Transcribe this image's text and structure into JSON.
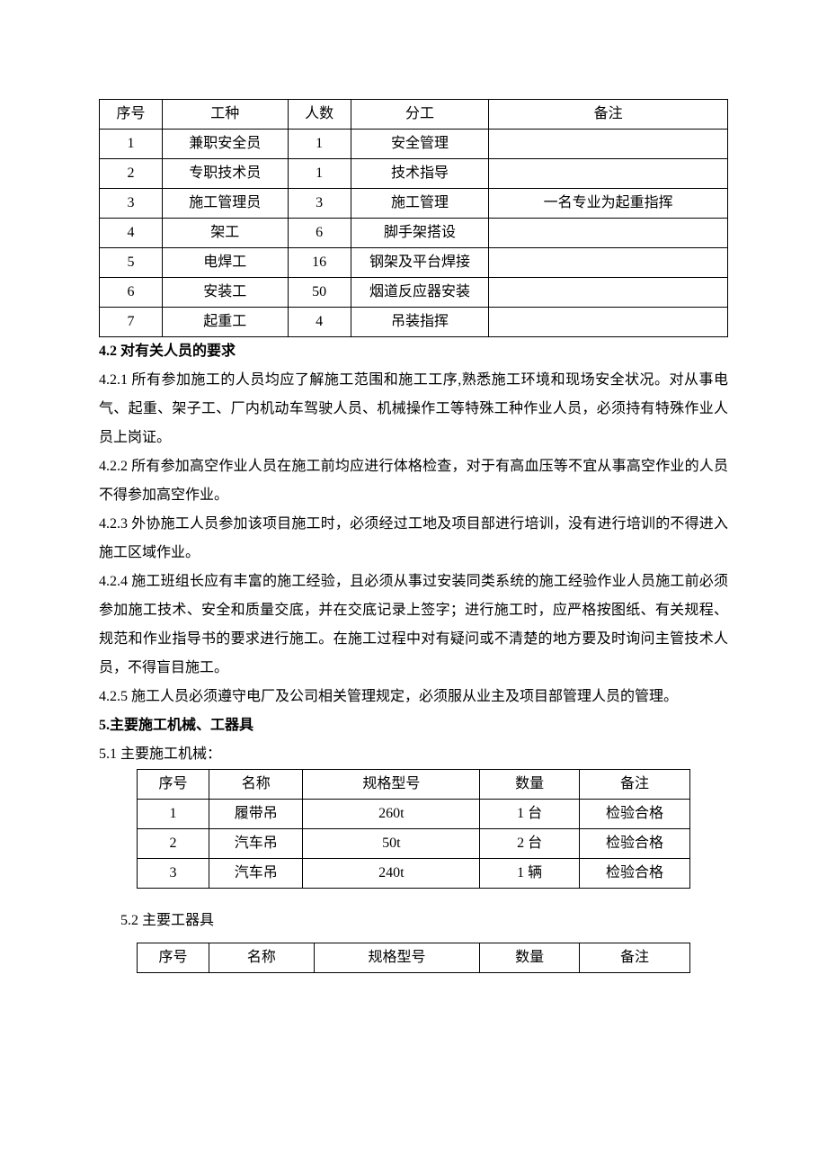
{
  "colors": {
    "text": "#000000",
    "background": "#ffffff",
    "border": "#000000"
  },
  "typography": {
    "body_fontsize_pt": 12,
    "line_height": 2.0,
    "font_family": "SimSun"
  },
  "table1": {
    "type": "table",
    "border_color": "#000000",
    "columns": [
      {
        "key": "no",
        "label": "序号",
        "width_pct": 10
      },
      {
        "key": "job",
        "label": "工种",
        "width_pct": 20
      },
      {
        "key": "count",
        "label": "人数",
        "width_pct": 10
      },
      {
        "key": "duty",
        "label": "分工",
        "width_pct": 22
      },
      {
        "key": "remark",
        "label": "备注",
        "width_pct": 38
      }
    ],
    "rows": [
      {
        "no": "1",
        "job": "兼职安全员",
        "count": "1",
        "duty": "安全管理",
        "remark": ""
      },
      {
        "no": "2",
        "job": "专职技术员",
        "count": "1",
        "duty": "技术指导",
        "remark": ""
      },
      {
        "no": "3",
        "job": "施工管理员",
        "count": "3",
        "duty": "施工管理",
        "remark": "一名专业为起重指挥"
      },
      {
        "no": "4",
        "job": "架工",
        "count": "6",
        "duty": "脚手架搭设",
        "remark": ""
      },
      {
        "no": "5",
        "job": "电焊工",
        "count": "16",
        "duty": "钢架及平台焊接",
        "remark": ""
      },
      {
        "no": "6",
        "job": "安装工",
        "count": "50",
        "duty": "烟道反应器安装",
        "remark": ""
      },
      {
        "no": "7",
        "job": "起重工",
        "count": "4",
        "duty": "吊装指挥",
        "remark": ""
      }
    ]
  },
  "section42": {
    "heading": "4.2 对有关人员的要求",
    "p1": "4.2.1 所有参加施工的人员均应了解施工范围和施工工序,熟悉施工环境和现场安全状况。对从事电气、起重、架子工、厂内机动车驾驶人员、机械操作工等特殊工种作业人员，必须持有特殊作业人员上岗证。",
    "p2": "4.2.2 所有参加高空作业人员在施工前均应进行体格检查，对于有高血压等不宜从事高空作业的人员不得参加高空作业。",
    "p3": "4.2.3 外协施工人员参加该项目施工时，必须经过工地及项目部进行培训，没有进行培训的不得进入施工区域作业。",
    "p4": "4.2.4 施工班组长应有丰富的施工经验，且必须从事过安装同类系统的施工经验作业人员施工前必须参加施工技术、安全和质量交底，并在交底记录上签字；进行施工时，应严格按图纸、有关规程、规范和作业指导书的要求进行施工。在施工过程中对有疑问或不清楚的地方要及时询问主管技术人员，不得盲目施工。",
    "p5": "4.2.5 施工人员必须遵守电厂及公司相关管理规定，必须服从业主及项目部管理人员的管理。"
  },
  "section5": {
    "heading": "5.主要施工机械、工器具",
    "sub51": "5.1 主要施工机械：",
    "sub52": "5.2 主要工器具"
  },
  "table2": {
    "type": "table",
    "border_color": "#000000",
    "columns": [
      {
        "key": "no",
        "label": "序号",
        "width_pct": 13
      },
      {
        "key": "name",
        "label": "名称",
        "width_pct": 17
      },
      {
        "key": "spec",
        "label": "规格型号",
        "width_pct": 32
      },
      {
        "key": "qty",
        "label": "数量",
        "width_pct": 18
      },
      {
        "key": "remark",
        "label": "备注",
        "width_pct": 20
      }
    ],
    "rows": [
      {
        "no": "1",
        "name": "履带吊",
        "spec": "260t",
        "qty": "1 台",
        "remark": "检验合格"
      },
      {
        "no": "2",
        "name": "汽车吊",
        "spec": "50t",
        "qty": "2 台",
        "remark": "检验合格"
      },
      {
        "no": "3",
        "name": "汽车吊",
        "spec": "240t",
        "qty": "1 辆",
        "remark": "检验合格"
      }
    ]
  },
  "table3": {
    "type": "table",
    "border_color": "#000000",
    "columns": [
      {
        "key": "no",
        "label": "序号",
        "width_pct": 13
      },
      {
        "key": "name",
        "label": "名称",
        "width_pct": 19
      },
      {
        "key": "spec",
        "label": "规格型号",
        "width_pct": 30
      },
      {
        "key": "qty",
        "label": "数量",
        "width_pct": 18
      },
      {
        "key": "remark",
        "label": "备注",
        "width_pct": 20
      }
    ],
    "rows": []
  }
}
